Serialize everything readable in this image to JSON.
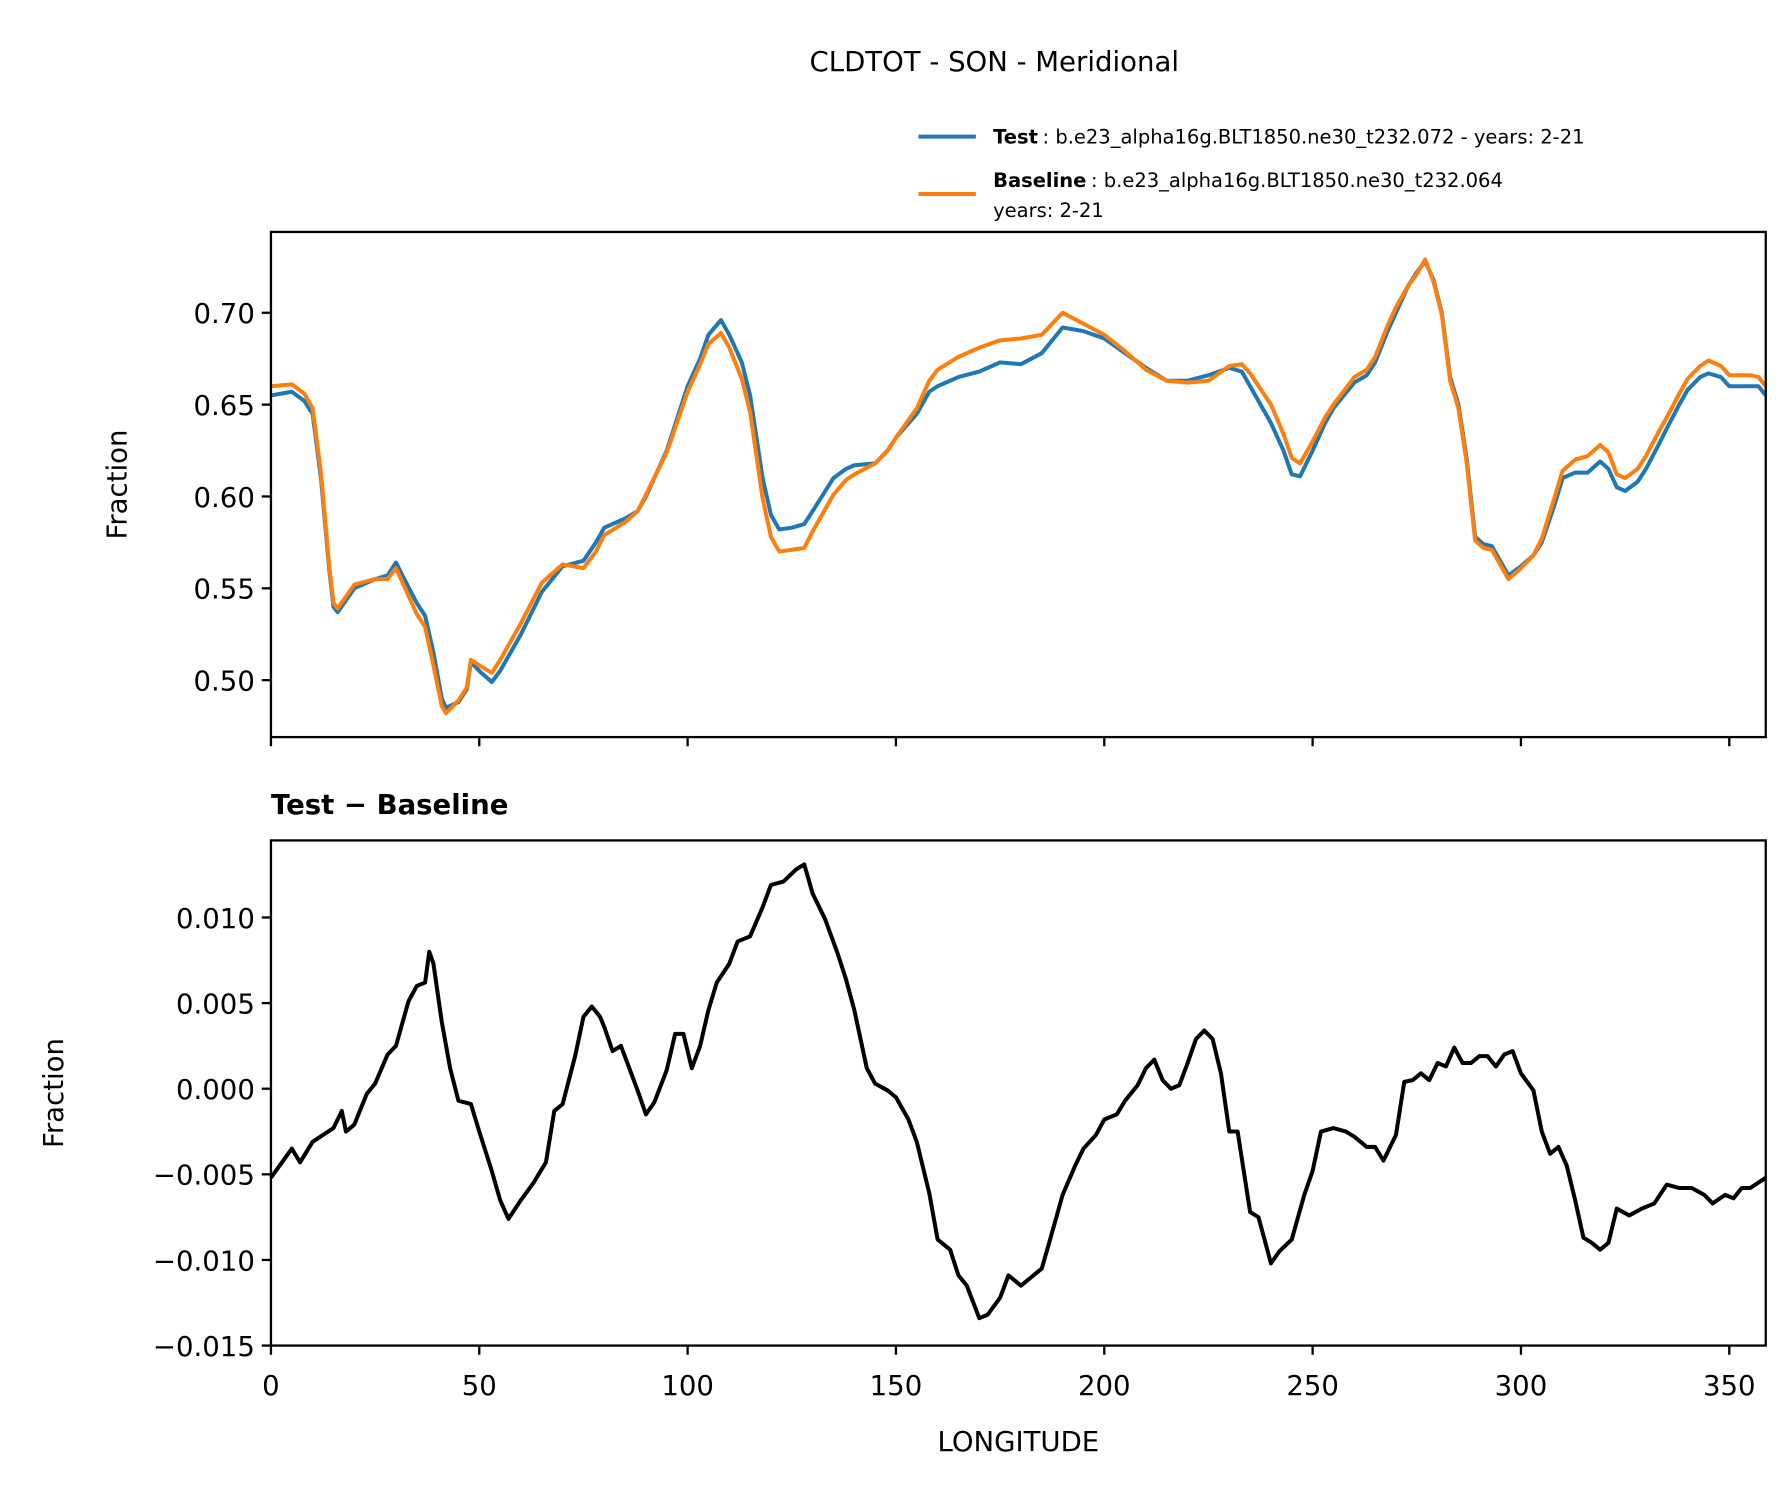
{
  "chart_data": [
    {
      "type": "line",
      "title": "CLDTOT - SON - Meridional",
      "ylabel": "Fraction",
      "xlim": [
        0,
        358.75
      ],
      "ylim": [
        0.469,
        0.744
      ],
      "xticks": [
        0,
        50,
        100,
        150,
        200,
        250,
        300,
        350
      ],
      "xtick_labels": false,
      "yticks": [
        {
          "value": 0.5,
          "label": "0.50"
        },
        0.55,
        {
          "value": 0.6,
          "label": "0.60"
        },
        0.65,
        {
          "value": 0.7,
          "label": "0.70"
        }
      ],
      "x": [
        0,
        5,
        8,
        10,
        12,
        14,
        15,
        16,
        20,
        25,
        28,
        30,
        32,
        35,
        37,
        39,
        41,
        42,
        45,
        47,
        48,
        50,
        53,
        55,
        60,
        65,
        70,
        75,
        78,
        80,
        85,
        88,
        90,
        95,
        100,
        103,
        105,
        108,
        110,
        113,
        115,
        118,
        120,
        122,
        125,
        128,
        130,
        135,
        138,
        140,
        145,
        148,
        150,
        155,
        158,
        160,
        165,
        170,
        175,
        180,
        185,
        190,
        195,
        200,
        205,
        210,
        215,
        220,
        225,
        230,
        233,
        235,
        240,
        243,
        245,
        247,
        250,
        253,
        255,
        260,
        263,
        265,
        268,
        270,
        273,
        275,
        277,
        279,
        281,
        283,
        285,
        287,
        289,
        291,
        293,
        295,
        297,
        300,
        303,
        305,
        308,
        310,
        313,
        316,
        319,
        321,
        323,
        325,
        328,
        330,
        333,
        335,
        338,
        340,
        343,
        345,
        348,
        350,
        353,
        355,
        357,
        358.75
      ],
      "series": [
        {
          "name": "Test",
          "description": ": b.e23_alpha16g.BLT1850.ne30_t232.072 - years: 2-21",
          "color": "#1f77b4",
          "values": [
            0.655,
            0.657,
            0.652,
            0.645,
            0.61,
            0.56,
            0.54,
            0.537,
            0.55,
            0.555,
            0.557,
            0.564,
            0.555,
            0.542,
            0.535,
            0.515,
            0.49,
            0.485,
            0.488,
            0.495,
            0.51,
            0.505,
            0.499,
            0.505,
            0.525,
            0.548,
            0.562,
            0.565,
            0.575,
            0.583,
            0.588,
            0.592,
            0.6,
            0.625,
            0.66,
            0.675,
            0.688,
            0.696,
            0.688,
            0.673,
            0.655,
            0.61,
            0.59,
            0.582,
            0.583,
            0.585,
            0.592,
            0.61,
            0.615,
            0.617,
            0.618,
            0.625,
            0.632,
            0.645,
            0.657,
            0.66,
            0.665,
            0.668,
            0.673,
            0.672,
            0.678,
            0.692,
            0.69,
            0.686,
            0.678,
            0.67,
            0.663,
            0.663,
            0.666,
            0.67,
            0.668,
            0.66,
            0.64,
            0.625,
            0.612,
            0.611,
            0.625,
            0.64,
            0.648,
            0.662,
            0.666,
            0.673,
            0.69,
            0.7,
            0.715,
            0.722,
            0.728,
            0.718,
            0.7,
            0.665,
            0.65,
            0.62,
            0.578,
            0.574,
            0.573,
            0.565,
            0.557,
            0.562,
            0.568,
            0.575,
            0.595,
            0.61,
            0.613,
            0.613,
            0.619,
            0.615,
            0.605,
            0.603,
            0.608,
            0.615,
            0.628,
            0.637,
            0.65,
            0.658,
            0.665,
            0.667,
            0.665,
            0.66,
            0.66,
            0.66,
            0.66,
            0.655
          ]
        },
        {
          "name": "Baseline",
          "description": [
            ": b.e23_alpha16g.BLT1850.ne30_t232.064",
            "years: 2-21"
          ],
          "color": "#ff7f0e",
          "values": [
            0.66,
            0.661,
            0.656,
            0.648,
            0.613,
            0.562,
            0.542,
            0.539,
            0.552,
            0.555,
            0.555,
            0.561,
            0.551,
            0.536,
            0.529,
            0.508,
            0.486,
            0.482,
            0.489,
            0.496,
            0.511,
            0.508,
            0.504,
            0.511,
            0.531,
            0.553,
            0.563,
            0.561,
            0.57,
            0.579,
            0.586,
            0.592,
            0.601,
            0.624,
            0.657,
            0.672,
            0.683,
            0.689,
            0.681,
            0.664,
            0.646,
            0.599,
            0.578,
            0.57,
            0.571,
            0.572,
            0.581,
            0.601,
            0.609,
            0.612,
            0.618,
            0.625,
            0.632,
            0.648,
            0.663,
            0.669,
            0.676,
            0.681,
            0.685,
            0.686,
            0.688,
            0.7,
            0.694,
            0.688,
            0.679,
            0.669,
            0.663,
            0.662,
            0.663,
            0.671,
            0.672,
            0.667,
            0.65,
            0.634,
            0.621,
            0.618,
            0.63,
            0.643,
            0.65,
            0.665,
            0.669,
            0.676,
            0.693,
            0.703,
            0.715,
            0.721,
            0.729,
            0.717,
            0.699,
            0.663,
            0.648,
            0.618,
            0.576,
            0.572,
            0.571,
            0.563,
            0.555,
            0.561,
            0.568,
            0.577,
            0.599,
            0.614,
            0.62,
            0.622,
            0.628,
            0.624,
            0.612,
            0.61,
            0.615,
            0.622,
            0.635,
            0.643,
            0.656,
            0.664,
            0.671,
            0.674,
            0.671,
            0.666,
            0.666,
            0.666,
            0.665,
            0.66
          ]
        }
      ]
    },
    {
      "type": "line",
      "title": "Test − Baseline",
      "xlabel": "LONGITUDE",
      "ylabel": "Fraction",
      "xlim": [
        0,
        358.75
      ],
      "ylim": [
        -0.015,
        0.0145
      ],
      "xticks": [
        0,
        50,
        100,
        150,
        200,
        250,
        300,
        350
      ],
      "yticks": [
        {
          "value": -0.015,
          "label": "−0.015"
        },
        {
          "value": -0.01,
          "label": "−0.010"
        },
        {
          "value": -0.005,
          "label": "−0.005"
        },
        {
          "value": 0,
          "label": "0.000"
        },
        {
          "value": 0.005,
          "label": "0.005"
        },
        {
          "value": 0.01,
          "label": "0.010"
        }
      ],
      "color": "#000000",
      "x": [
        0,
        5,
        7,
        10,
        15,
        17,
        18,
        20,
        23,
        25,
        28,
        30,
        33,
        35,
        37,
        38,
        39,
        41,
        43,
        45,
        48,
        50,
        53,
        55,
        57,
        60,
        63,
        66,
        68,
        70,
        73,
        75,
        77,
        79,
        80,
        82,
        84,
        86,
        88,
        90,
        92,
        95,
        97,
        99,
        101,
        103,
        105,
        107,
        110,
        112,
        115,
        118,
        120,
        123,
        126,
        128,
        130,
        133,
        136,
        138,
        140,
        143,
        145,
        148,
        150,
        153,
        155,
        158,
        160,
        163,
        165,
        167,
        170,
        172,
        175,
        177,
        180,
        183,
        185,
        187,
        190,
        193,
        195,
        198,
        200,
        203,
        205,
        208,
        210,
        212,
        214,
        216,
        218,
        220,
        222,
        224,
        226,
        228,
        230,
        232,
        235,
        237,
        240,
        242,
        245,
        248,
        250,
        252,
        255,
        258,
        260,
        263,
        265,
        267,
        270,
        272,
        274,
        276,
        278,
        280,
        282,
        284,
        286,
        288,
        290,
        292,
        294,
        296,
        298,
        300,
        303,
        305,
        307,
        309,
        311,
        313,
        315,
        317,
        319,
        321,
        323,
        326,
        329,
        332,
        335,
        338,
        341,
        344,
        346,
        349,
        351,
        353,
        355,
        358.75
      ],
      "values": [
        -0.0052,
        -0.0035,
        -0.0043,
        -0.0031,
        -0.0023,
        -0.0013,
        -0.0025,
        -0.0021,
        -0.0003,
        0.0003,
        0.002,
        0.0025,
        0.0051,
        0.006,
        0.0062,
        0.008,
        0.0073,
        0.0039,
        0.0012,
        -0.0007,
        -0.0009,
        -0.0025,
        -0.0048,
        -0.0065,
        -0.0076,
        -0.0065,
        -0.0055,
        -0.0043,
        -0.0013,
        -0.0009,
        0.0019,
        0.0042,
        0.0048,
        0.0042,
        0.0036,
        0.0022,
        0.0025,
        0.0012,
        -0.0001,
        -0.0015,
        -0.0008,
        0.0011,
        0.0032,
        0.0032,
        0.0012,
        0.0025,
        0.0046,
        0.0062,
        0.0073,
        0.0086,
        0.0089,
        0.0106,
        0.0119,
        0.0121,
        0.0128,
        0.0131,
        0.0114,
        0.0099,
        0.0079,
        0.0064,
        0.0046,
        0.0012,
        0.0003,
        -0.0001,
        -0.0005,
        -0.0018,
        -0.0031,
        -0.0061,
        -0.0088,
        -0.0094,
        -0.0109,
        -0.0115,
        -0.0134,
        -0.0132,
        -0.0122,
        -0.0109,
        -0.0115,
        -0.0109,
        -0.0105,
        -0.0088,
        -0.0062,
        -0.0045,
        -0.0035,
        -0.0027,
        -0.0018,
        -0.0015,
        -0.0007,
        0.0002,
        0.0012,
        0.0017,
        0.0005,
        0.0,
        0.0002,
        0.0015,
        0.0029,
        0.0034,
        0.0029,
        0.0009,
        -0.0025,
        -0.0025,
        -0.0072,
        -0.0075,
        -0.0102,
        -0.0095,
        -0.0088,
        -0.0062,
        -0.0048,
        -0.0025,
        -0.0023,
        -0.0025,
        -0.0028,
        -0.0034,
        -0.0034,
        -0.0042,
        -0.0027,
        0.0004,
        0.0005,
        0.0009,
        0.0005,
        0.0015,
        0.0013,
        0.0024,
        0.0015,
        0.0015,
        0.0019,
        0.0019,
        0.0013,
        0.002,
        0.0022,
        0.0009,
        -0.0001,
        -0.0025,
        -0.0038,
        -0.0034,
        -0.0045,
        -0.0065,
        -0.0087,
        -0.009,
        -0.0094,
        -0.009,
        -0.007,
        -0.0074,
        -0.007,
        -0.0067,
        -0.0056,
        -0.0058,
        -0.0058,
        -0.0062,
        -0.0067,
        -0.0062,
        -0.0064,
        -0.0058,
        -0.0058,
        -0.0052
      ]
    }
  ]
}
